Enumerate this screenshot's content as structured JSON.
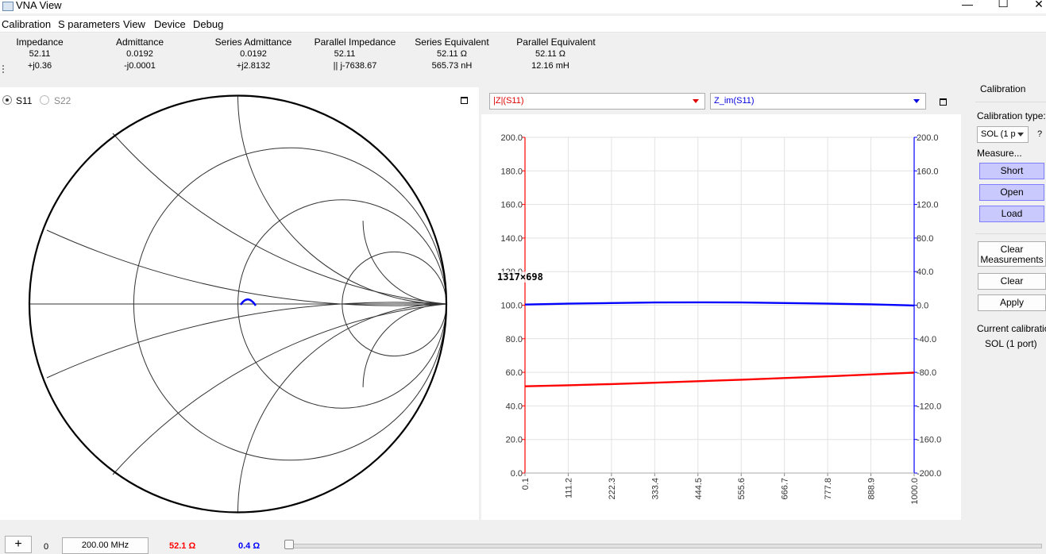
{
  "window": {
    "title": "VNA View",
    "minimize": "—",
    "maximize": "☐",
    "close": "✕"
  },
  "menu": [
    "Calibration",
    "S parameters",
    "View",
    "Device",
    "Debug"
  ],
  "info": [
    {
      "label": "Impedance",
      "v1": "52.11",
      "v2": "+j0.36"
    },
    {
      "label": "Admittance",
      "v1": "0.0192",
      "v2": "-j0.0001"
    },
    {
      "label": "Series Admittance",
      "v1": "0.0192",
      "v2": "+j2.8132"
    },
    {
      "label": "Parallel Impedance",
      "v1": "52.11",
      "v2": "|| j-7638.67"
    },
    {
      "label": "Series Equivalent",
      "v1": "52.11 Ω",
      "v2": "565.73 nH"
    },
    {
      "label": "Parallel Equivalent",
      "v1": "52.11 Ω",
      "v2": "12.16 mH"
    }
  ],
  "smith": {
    "s11_label": "S11",
    "s22_label": "S22",
    "s11_checked": true,
    "trace_color": "#0000ff"
  },
  "chart_controls": {
    "left_trace": "|Z|(S11)",
    "left_color": "#ff0000",
    "right_trace": "Z_im(S11)",
    "right_color": "#0000ff"
  },
  "overlay_text": "1317×698",
  "chart_data": {
    "type": "line",
    "x": [
      0.1,
      111.2,
      222.3,
      333.4,
      444.5,
      555.6,
      666.7,
      777.8,
      888.9,
      1000.0
    ],
    "x_ticks": [
      "0.1",
      "111.2",
      "222.3",
      "333.4",
      "444.5",
      "555.6",
      "666.7",
      "777.8",
      "888.9",
      "1000.0"
    ],
    "xlim": [
      0.1,
      1000.0
    ],
    "ylim_left": [
      0,
      200
    ],
    "ylim_right": [
      -200,
      200
    ],
    "y_ticks_left": [
      "0.0",
      "20.0",
      "40.0",
      "60.0",
      "80.0",
      "100.0",
      "120.0",
      "140.0",
      "160.0",
      "180.0",
      "200.0"
    ],
    "y_ticks_right": [
      "-200.0",
      "-160.0",
      "-120.0",
      "-80.0",
      "-40.0",
      "0.0",
      "40.0",
      "80.0",
      "120.0",
      "160.0",
      "200.0"
    ],
    "grid": true,
    "series": [
      {
        "name": "|Z|(S11)",
        "axis": "left",
        "color": "#ff0000",
        "values": [
          51.7,
          52.3,
          53.0,
          53.8,
          54.7,
          55.6,
          56.6,
          57.6,
          58.7,
          59.8
        ]
      },
      {
        "name": "Z_im(S11)",
        "axis": "right",
        "color": "#0000ff",
        "values": [
          0.8,
          1.8,
          2.6,
          3.2,
          3.4,
          3.2,
          2.6,
          1.8,
          1.0,
          -0.4
        ]
      }
    ]
  },
  "calibration": {
    "header": "Calibration",
    "type_label": "Calibration type:",
    "type_value": "SOL (1 p",
    "help": "?",
    "measure_label": "Measure...",
    "short": "Short",
    "open": "Open",
    "load": "Load",
    "clear_meas_1": "Clear",
    "clear_meas_2": "Measurements",
    "clear": "Clear",
    "apply": "Apply",
    "current_label": "Current calibration",
    "current_value": "SOL (1 port)"
  },
  "bottom": {
    "add": "+",
    "index": "0",
    "freq": "200.00 MHz",
    "marker_real": "52.1 Ω",
    "marker_imag": "0.4 Ω",
    "marker_real_color": "#ff0000",
    "marker_imag_color": "#0000ff"
  }
}
